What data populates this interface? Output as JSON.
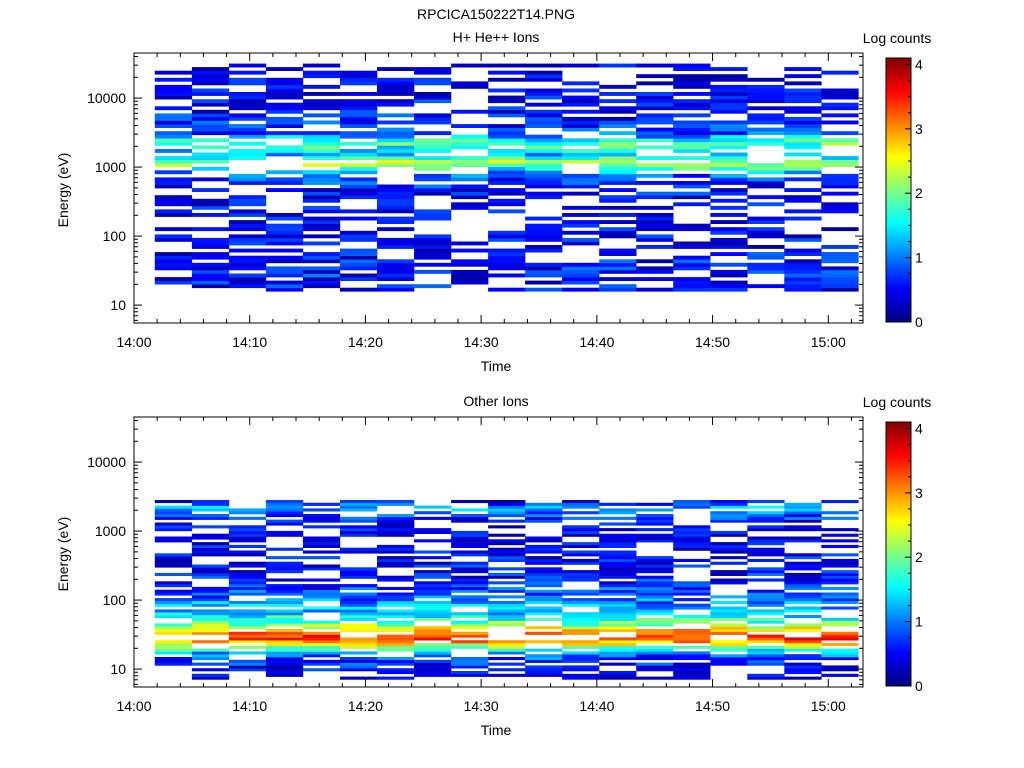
{
  "figure": {
    "title": "RPCICA150222T14.PNG"
  },
  "colors": {
    "colormap": [
      "#00007f",
      "#0000ff",
      "#0080ff",
      "#00ffff",
      "#80ff80",
      "#ffff00",
      "#ff8000",
      "#ff0000",
      "#7f0000"
    ],
    "background": "#ffffff",
    "axes": "#000000"
  },
  "chart_data": [
    {
      "type": "heatmap",
      "title": "H+ He++ Ions",
      "xlabel": "Time",
      "ylabel": "Energy (eV)",
      "yscale": "log",
      "xlim": [
        "14:00",
        "15:03"
      ],
      "ylim": [
        5.5,
        45000
      ],
      "xticks": [
        "14:00",
        "14:10",
        "14:20",
        "14:30",
        "14:40",
        "14:50",
        "15:00"
      ],
      "yticks": [
        "10",
        "100",
        "1000",
        "10000"
      ],
      "colorbar": {
        "label": "Log counts",
        "range": [
          0,
          4.1
        ],
        "ticks": [
          "0",
          "1",
          "2",
          "3",
          "4"
        ]
      },
      "profile": {
        "log_energy": [
          1.2,
          1.5,
          1.8,
          2.2,
          2.6,
          2.9,
          3.05,
          3.2,
          3.35,
          3.5,
          3.8,
          4.1,
          4.5
        ],
        "log_counts": [
          0.5,
          0.6,
          0.45,
          0.35,
          0.45,
          0.9,
          2.3,
          1.2,
          1.9,
          0.8,
          0.5,
          0.4,
          0.3
        ]
      }
    },
    {
      "type": "heatmap",
      "title": "Other Ions",
      "xlabel": "Time",
      "ylabel": "Energy (eV)",
      "yscale": "log",
      "xlim": [
        "14:00",
        "15:03"
      ],
      "ylim": [
        5.5,
        45000
      ],
      "xticks": [
        "14:00",
        "14:10",
        "14:20",
        "14:30",
        "14:40",
        "14:50",
        "15:00"
      ],
      "yticks": [
        "10",
        "100",
        "1000",
        "10000"
      ],
      "colorbar": {
        "label": "Log counts",
        "range": [
          0,
          4.1
        ],
        "ticks": [
          "0",
          "1",
          "2",
          "3",
          "4"
        ]
      },
      "profile": {
        "log_energy": [
          0.85,
          1.0,
          1.2,
          1.35,
          1.45,
          1.55,
          1.65,
          1.8,
          2.0,
          2.2,
          2.5,
          2.8,
          3.1,
          3.35,
          3.45
        ],
        "log_counts": [
          0.25,
          0.45,
          0.9,
          2.4,
          3.4,
          3.0,
          2.0,
          1.4,
          1.0,
          0.7,
          0.45,
          0.4,
          0.35,
          1.2,
          0.3
        ]
      }
    }
  ]
}
